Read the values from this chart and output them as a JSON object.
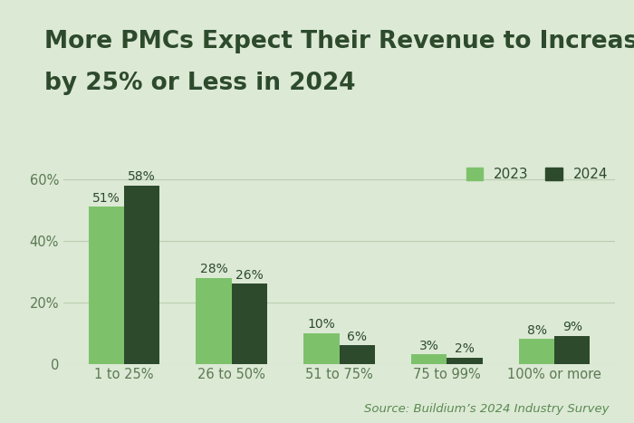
{
  "title_line1": "More PMCs Expect Their Revenue to Increase",
  "title_line2": "by 25% or Less in 2024",
  "categories": [
    "1 to 25%",
    "26 to 50%",
    "51 to 75%",
    "75 to 99%",
    "100% or more"
  ],
  "values_2023": [
    51,
    28,
    10,
    3,
    8
  ],
  "values_2024": [
    58,
    26,
    6,
    2,
    9
  ],
  "color_2023": "#7DC26B",
  "color_2024": "#2D4A2D",
  "background_color": "#DCE9D5",
  "title_color": "#2D4A2D",
  "tick_label_color": "#5A7A52",
  "source_text": "Source: Buildium’s 2024 Industry Survey",
  "source_color": "#5A8A50",
  "legend_labels": [
    "2023",
    "2024"
  ],
  "ylim": [
    0,
    66
  ],
  "yticks": [
    0,
    20,
    40,
    60
  ],
  "ytick_labels": [
    "0",
    "20%",
    "40%",
    "60%"
  ],
  "bar_width": 0.33,
  "title_fontsize": 19,
  "legend_fontsize": 11,
  "tick_fontsize": 10.5,
  "annotation_fontsize": 10,
  "source_fontsize": 9.5
}
